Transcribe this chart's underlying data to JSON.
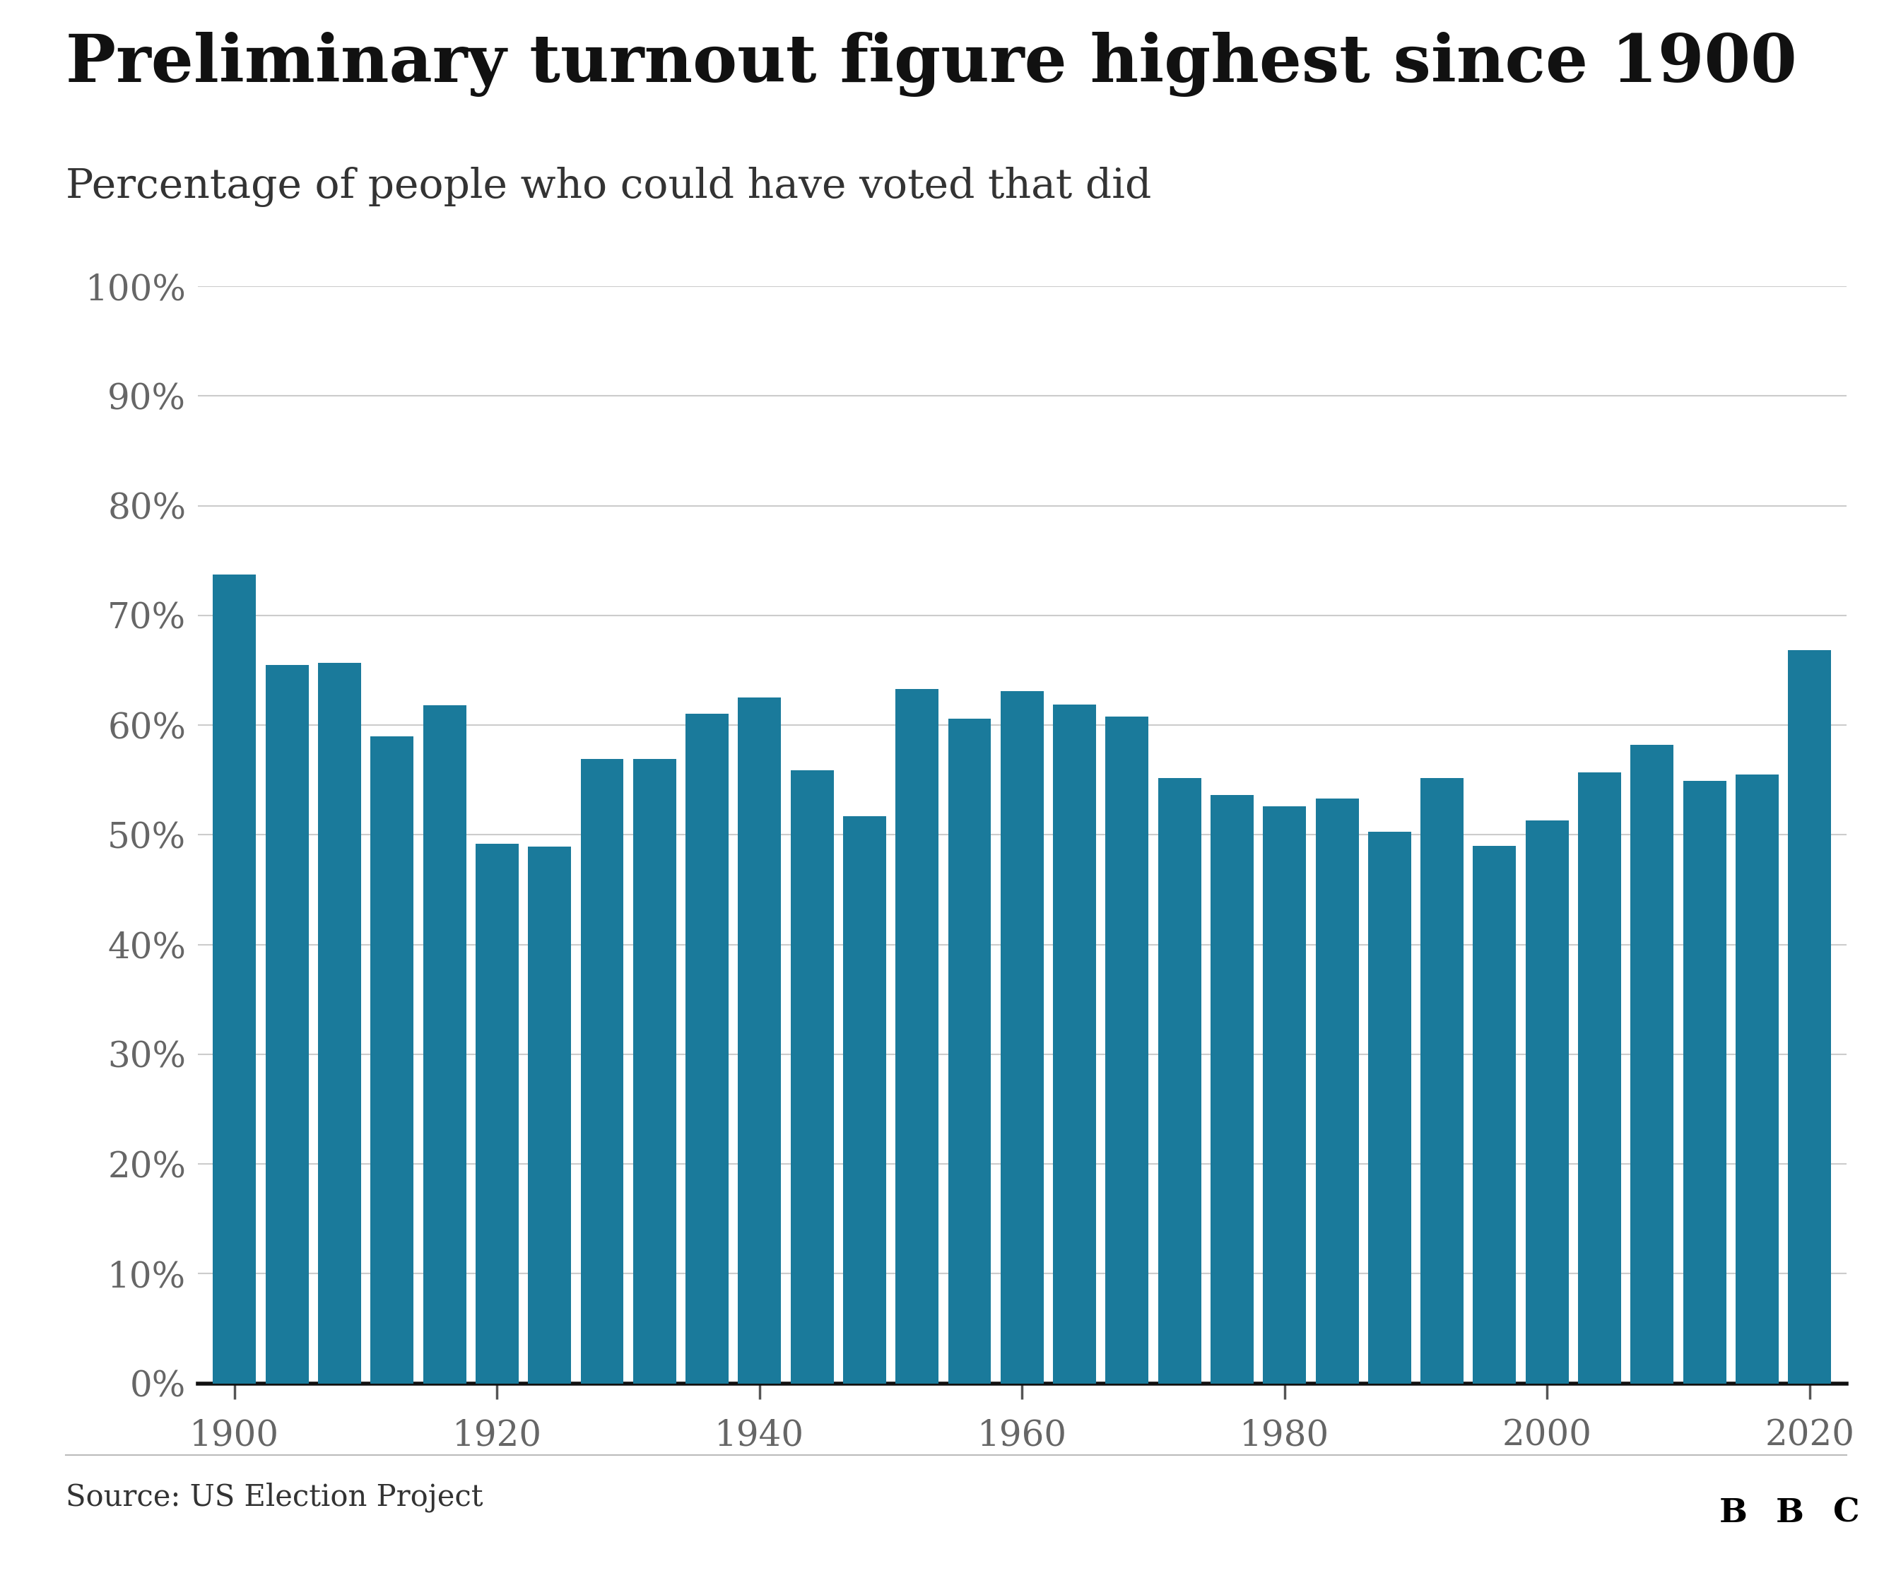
{
  "title": "Preliminary turnout figure highest since 1900",
  "subtitle": "Percentage of people who could have voted that did",
  "source": "Source: US Election Project",
  "bar_color": "#1a7a9b",
  "background_color": "#ffffff",
  "years": [
    1900,
    1904,
    1908,
    1912,
    1916,
    1920,
    1924,
    1928,
    1932,
    1936,
    1940,
    1944,
    1948,
    1952,
    1956,
    1960,
    1964,
    1968,
    1972,
    1976,
    1980,
    1984,
    1988,
    1992,
    1996,
    2000,
    2004,
    2008,
    2012,
    2016,
    2020
  ],
  "values": [
    73.7,
    65.5,
    65.7,
    59.0,
    61.8,
    49.2,
    48.9,
    56.9,
    56.9,
    61.0,
    62.5,
    55.9,
    51.7,
    63.3,
    60.6,
    63.1,
    61.9,
    60.8,
    55.2,
    53.6,
    52.6,
    53.3,
    50.3,
    55.2,
    49.0,
    51.3,
    55.7,
    58.2,
    54.9,
    55.5,
    66.8
  ],
  "ylim": [
    0,
    100
  ],
  "yticks": [
    0,
    10,
    20,
    30,
    40,
    50,
    60,
    70,
    80,
    90,
    100
  ],
  "xtick_years": [
    1900,
    1920,
    1940,
    1960,
    1980,
    2000,
    2020
  ],
  "title_fontsize": 68,
  "subtitle_fontsize": 42,
  "tick_fontsize": 36,
  "source_fontsize": 30,
  "grid_color": "#cccccc",
  "spine_color": "#111111",
  "tick_color": "#666666"
}
